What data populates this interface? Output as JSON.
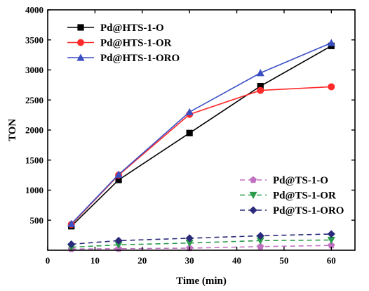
{
  "chart_data": {
    "type": "line",
    "title": "",
    "xlabel": "Time (min)",
    "ylabel": "TON",
    "xlim": [
      0,
      65
    ],
    "ylim": [
      0,
      4000
    ],
    "x_ticks": [
      "0",
      "10",
      "20",
      "30",
      "40",
      "50",
      "60"
    ],
    "y_ticks": [
      "500",
      "1000",
      "1500",
      "2000",
      "2500",
      "3000",
      "3500",
      "4000"
    ],
    "grid": false,
    "series": [
      {
        "name": "Pd@HTS-1-O",
        "color": "#000000",
        "marker": "square",
        "line": "solid",
        "x": [
          5,
          15,
          30,
          45,
          60
        ],
        "y": [
          400,
          1170,
          1950,
          2730,
          3400
        ]
      },
      {
        "name": "Pd@HTS-1-OR",
        "color": "#ff2a2a",
        "marker": "circle",
        "line": "solid",
        "x": [
          5,
          15,
          30,
          45,
          60
        ],
        "y": [
          430,
          1250,
          2260,
          2660,
          2720
        ]
      },
      {
        "name": "Pd@HTS-1-ORO",
        "color": "#3b4fc4",
        "marker": "triangle-up",
        "line": "solid",
        "x": [
          5,
          15,
          30,
          45,
          60
        ],
        "y": [
          440,
          1260,
          2300,
          2950,
          3450
        ]
      },
      {
        "name": "Pd@TS-1-O",
        "color": "#c070c0",
        "marker": "pentagon",
        "line": "dashed",
        "x": [
          5,
          15,
          30,
          45,
          60
        ],
        "y": [
          20,
          25,
          35,
          60,
          80
        ]
      },
      {
        "name": "Pd@TS-1-OR",
        "color": "#2a9a4a",
        "marker": "triangle-down",
        "line": "dashed",
        "x": [
          5,
          15,
          30,
          45,
          60
        ],
        "y": [
          50,
          90,
          120,
          160,
          170
        ]
      },
      {
        "name": "Pd@TS-1-ORO",
        "color": "#2a2a7a",
        "marker": "diamond",
        "line": "dashed",
        "x": [
          5,
          15,
          30,
          45,
          60
        ],
        "y": [
          100,
          160,
          200,
          240,
          270
        ]
      }
    ],
    "legends": [
      {
        "placement": "top-left",
        "series": [
          0,
          1,
          2
        ]
      },
      {
        "placement": "bottom-right",
        "series": [
          3,
          4,
          5
        ]
      }
    ]
  }
}
